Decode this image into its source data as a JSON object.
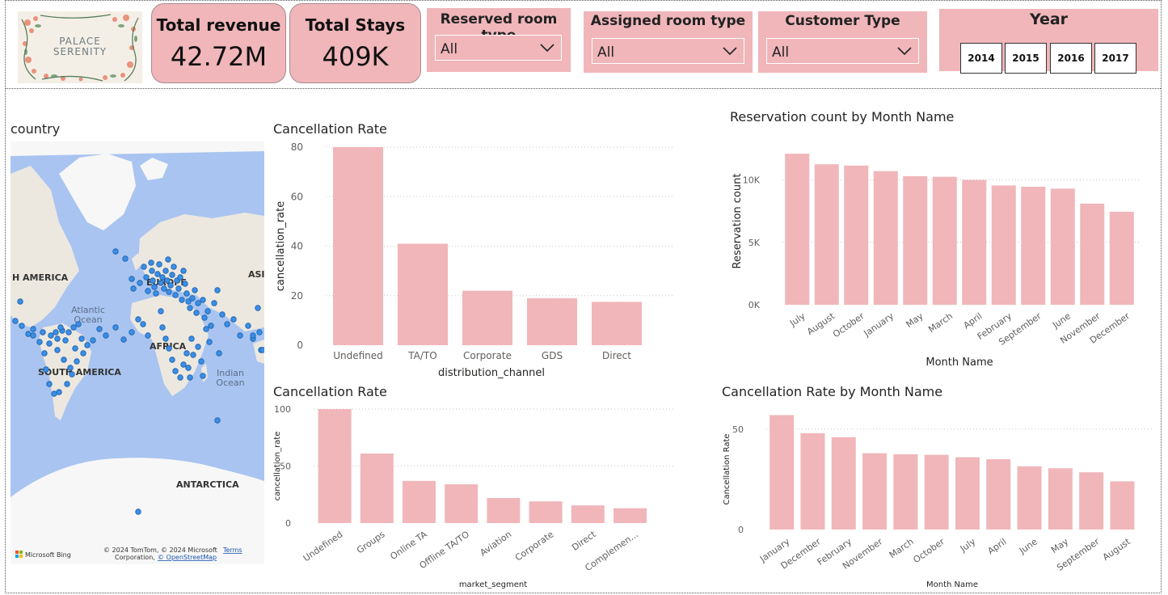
{
  "logo": {
    "line1": "PALACE",
    "line2": "SERENITY"
  },
  "kpis": {
    "revenue": {
      "title": "Total revenue",
      "value": "42.72M"
    },
    "stays": {
      "title": "Total Stays",
      "value": "409K"
    }
  },
  "slicers": {
    "reserved": {
      "title": "Reserved room type",
      "value": "All"
    },
    "assigned": {
      "title": "Assigned room type",
      "value": "All"
    },
    "customer": {
      "title": "Customer Type",
      "value": "All"
    },
    "year": {
      "title": "Year",
      "options": [
        "2014",
        "2015",
        "2016",
        "2017"
      ]
    }
  },
  "map": {
    "title": "country",
    "labels": {
      "north_america": "H AMERICA",
      "europe": "EUROPE",
      "asia": "ASI",
      "atlantic1": "Atlantic",
      "atlantic2": "Ocean",
      "africa": "AFRICA",
      "south_america": "SOUTH AMERICA",
      "indian1": "Indian",
      "indian2": "Ocean",
      "antarctica": "ANTARCTICA"
    },
    "attribution": {
      "bing": "Microsoft Bing",
      "line1": "© 2024 TomTom, © 2024 Microsoft",
      "terms": "Terms",
      "line2": "Corporation,",
      "osm": "© OpenStreetMap"
    },
    "colors": {
      "water": "#a9c4f0",
      "land": "#ece8e0",
      "ice": "#f7f7f7",
      "dot": "#3a8ee6"
    }
  },
  "chart_data": [
    {
      "id": "channel",
      "type": "bar",
      "title": "Cancellation Rate",
      "xlabel": "distribution_channel",
      "ylabel": "cancellation_rate",
      "categories": [
        "Undefined",
        "TA/TO",
        "Corporate",
        "GDS",
        "Direct"
      ],
      "values": [
        80,
        41,
        22,
        19,
        17.5
      ],
      "ylim": [
        0,
        80
      ],
      "yticks": [
        "0",
        "20",
        "40",
        "60",
        "80"
      ],
      "ytick_values": [
        0,
        20,
        40,
        60,
        80
      ],
      "grid": true,
      "color": "#f0b6ba"
    },
    {
      "id": "segment",
      "type": "bar",
      "title": "Cancellation Rate",
      "xlabel": "market_segment",
      "ylabel": "cancellation_rate",
      "categories": [
        "Undefined",
        "Groups",
        "Online TA",
        "Offline TA/TO",
        "Aviation",
        "Corporate",
        "Direct",
        "Complemen..."
      ],
      "values": [
        100,
        61,
        37,
        34,
        22,
        19,
        15.5,
        13
      ],
      "ylim": [
        0,
        100
      ],
      "yticks": [
        "0",
        "50",
        "100"
      ],
      "ytick_values": [
        0,
        50,
        100
      ],
      "grid": true,
      "color": "#f0b6ba"
    },
    {
      "id": "resmonth",
      "type": "bar",
      "title": "Reservation count by Month Name",
      "xlabel": "Month Name",
      "ylabel": "Reservation count",
      "categories": [
        "July",
        "August",
        "October",
        "January",
        "May",
        "March",
        "April",
        "February",
        "September",
        "June",
        "November",
        "December"
      ],
      "values": [
        12100,
        11250,
        11150,
        10700,
        10300,
        10250,
        10000,
        9550,
        9450,
        9300,
        8100,
        7450
      ],
      "ylim": [
        0,
        13400
      ],
      "yticks": [
        "0K",
        "5K",
        "10K"
      ],
      "ytick_values": [
        0,
        5000,
        10000
      ],
      "grid": true,
      "color": "#f0b6ba"
    },
    {
      "id": "cancmonth",
      "type": "bar",
      "title": "Cancellation Rate by Month Name",
      "xlabel": "Month Name",
      "ylabel": "Cancellation Rate",
      "categories": [
        "January",
        "December",
        "February",
        "November",
        "March",
        "October",
        "July",
        "April",
        "June",
        "May",
        "September",
        "August"
      ],
      "values": [
        57,
        48,
        46,
        38,
        37.5,
        37.2,
        36,
        35,
        31.5,
        30.5,
        28.5,
        24
      ],
      "ylim": [
        0,
        60
      ],
      "yticks": [
        "0",
        "50"
      ],
      "ytick_values": [
        0,
        50
      ],
      "grid": true,
      "color": "#f0b6ba"
    }
  ]
}
